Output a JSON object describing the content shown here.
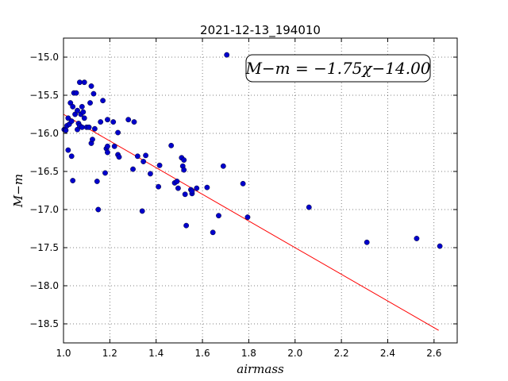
{
  "chart_data": {
    "type": "scatter",
    "title": "2021-12-13_194010",
    "xlabel": "airmass",
    "ylabel": "M−m",
    "xlim": [
      1.0,
      2.7
    ],
    "ylim": [
      -18.75,
      -14.75
    ],
    "xticks": [
      1.0,
      1.2,
      1.4,
      1.6,
      1.8,
      2.0,
      2.2,
      2.4,
      2.6
    ],
    "xtick_labels": [
      "1.0",
      "1.2",
      "1.4",
      "1.6",
      "1.8",
      "2.0",
      "2.2",
      "2.4",
      "2.6"
    ],
    "yticks": [
      -15.0,
      -15.5,
      -16.0,
      -16.5,
      -17.0,
      -17.5,
      -18.0,
      -18.5
    ],
    "ytick_labels": [
      "−15.0",
      "−15.5",
      "−16.0",
      "−16.5",
      "−17.0",
      "−17.5",
      "−18.0",
      "−18.5"
    ],
    "grid": true,
    "annotation": "M−m = −1.75χ−14.00",
    "point_color": "#0000cc",
    "line_color": "#ff0000",
    "fit": {
      "slope": -1.75,
      "intercept": -14.0,
      "x_range": [
        1.0,
        2.62
      ]
    },
    "points": [
      [
        1.003,
        -15.95
      ],
      [
        1.01,
        -15.96
      ],
      [
        1.015,
        -15.9
      ],
      [
        1.02,
        -15.8
      ],
      [
        1.02,
        -16.22
      ],
      [
        1.025,
        -15.88
      ],
      [
        1.03,
        -15.6
      ],
      [
        1.035,
        -15.84
      ],
      [
        1.035,
        -16.3
      ],
      [
        1.04,
        -15.65
      ],
      [
        1.04,
        -16.62
      ],
      [
        1.045,
        -15.47
      ],
      [
        1.05,
        -15.75
      ],
      [
        1.055,
        -15.47
      ],
      [
        1.06,
        -15.95
      ],
      [
        1.06,
        -15.7
      ],
      [
        1.065,
        -15.87
      ],
      [
        1.07,
        -15.33
      ],
      [
        1.07,
        -15.9
      ],
      [
        1.075,
        -15.75
      ],
      [
        1.08,
        -15.65
      ],
      [
        1.08,
        -15.92
      ],
      [
        1.085,
        -15.72
      ],
      [
        1.09,
        -15.33
      ],
      [
        1.09,
        -15.8
      ],
      [
        1.1,
        -15.92
      ],
      [
        1.11,
        -15.92
      ],
      [
        1.115,
        -15.6
      ],
      [
        1.12,
        -15.38
      ],
      [
        1.12,
        -16.13
      ],
      [
        1.125,
        -16.08
      ],
      [
        1.13,
        -15.48
      ],
      [
        1.135,
        -15.94
      ],
      [
        1.145,
        -16.63
      ],
      [
        1.15,
        -17.0
      ],
      [
        1.16,
        -15.85
      ],
      [
        1.17,
        -15.57
      ],
      [
        1.18,
        -16.52
      ],
      [
        1.185,
        -16.2
      ],
      [
        1.19,
        -15.82
      ],
      [
        1.19,
        -16.17
      ],
      [
        1.19,
        -16.25
      ],
      [
        1.215,
        -15.85
      ],
      [
        1.22,
        -16.17
      ],
      [
        1.235,
        -15.99
      ],
      [
        1.235,
        -16.28
      ],
      [
        1.24,
        -16.31
      ],
      [
        1.28,
        -15.82
      ],
      [
        1.3,
        -16.47
      ],
      [
        1.305,
        -15.85
      ],
      [
        1.32,
        -16.3
      ],
      [
        1.34,
        -17.02
      ],
      [
        1.345,
        -16.37
      ],
      [
        1.355,
        -16.29
      ],
      [
        1.375,
        -16.53
      ],
      [
        1.41,
        -16.7
      ],
      [
        1.415,
        -16.42
      ],
      [
        1.465,
        -16.16
      ],
      [
        1.48,
        -16.65
      ],
      [
        1.49,
        -16.63
      ],
      [
        1.495,
        -16.72
      ],
      [
        1.51,
        -16.32
      ],
      [
        1.515,
        -16.43
      ],
      [
        1.52,
        -16.48
      ],
      [
        1.52,
        -16.35
      ],
      [
        1.525,
        -16.8
      ],
      [
        1.53,
        -17.21
      ],
      [
        1.55,
        -16.74
      ],
      [
        1.555,
        -16.79
      ],
      [
        1.555,
        -16.76
      ],
      [
        1.575,
        -16.72
      ],
      [
        1.62,
        -16.71
      ],
      [
        1.645,
        -17.3
      ],
      [
        1.67,
        -17.08
      ],
      [
        1.69,
        -16.43
      ],
      [
        1.705,
        -14.97
      ],
      [
        1.775,
        -16.66
      ],
      [
        1.795,
        -17.1
      ],
      [
        2.06,
        -16.97
      ],
      [
        2.31,
        -17.43
      ],
      [
        2.525,
        -17.38
      ],
      [
        2.625,
        -17.48
      ]
    ]
  }
}
